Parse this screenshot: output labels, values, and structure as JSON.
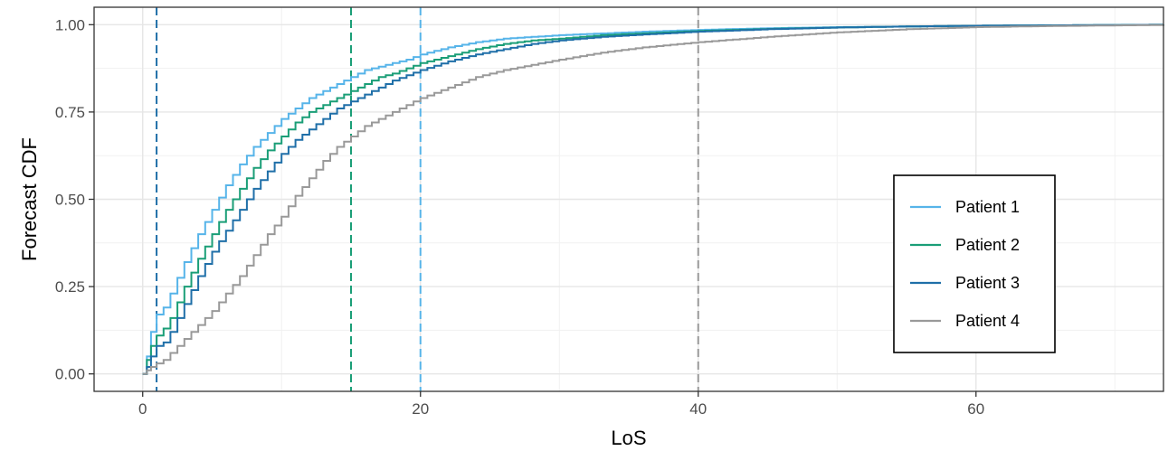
{
  "chart_data": {
    "type": "line",
    "title": "",
    "xlabel": "LoS",
    "ylabel": "Forecast CDF",
    "xlim": [
      -3.5,
      73.5
    ],
    "ylim": [
      -0.05,
      1.05
    ],
    "x_ticks": [
      0,
      20,
      40,
      60
    ],
    "x_tick_labels": [
      "0",
      "20",
      "40",
      "60"
    ],
    "y_ticks": [
      0,
      0.25,
      0.5,
      0.75,
      1.0
    ],
    "y_tick_labels": [
      "0.00",
      "0.25",
      "0.50",
      "0.75",
      "1.00"
    ],
    "grid": true,
    "legend_position": "right",
    "series": [
      {
        "name": "Patient 1",
        "color": "#56B4E9",
        "x": [
          0,
          0.3,
          0.6,
          1,
          1.5,
          2,
          3,
          4,
          5,
          6,
          7,
          8,
          9,
          10,
          11,
          12,
          13,
          14,
          15,
          16,
          17,
          18,
          19,
          20,
          22,
          24,
          26,
          28,
          30,
          33,
          36,
          40,
          45,
          50,
          55,
          60,
          65,
          70,
          73.5
        ],
        "y": [
          0,
          0.05,
          0.12,
          0.17,
          0.19,
          0.23,
          0.32,
          0.4,
          0.47,
          0.54,
          0.6,
          0.65,
          0.69,
          0.73,
          0.76,
          0.79,
          0.81,
          0.83,
          0.85,
          0.87,
          0.88,
          0.89,
          0.9,
          0.915,
          0.935,
          0.95,
          0.96,
          0.965,
          0.97,
          0.975,
          0.98,
          0.985,
          0.99,
          0.993,
          0.995,
          0.997,
          0.998,
          0.999,
          1.0
        ],
        "reference_line_x": 20
      },
      {
        "name": "Patient 2",
        "color": "#1A9E77",
        "x": [
          0,
          0.3,
          0.6,
          1,
          1.5,
          2,
          3,
          4,
          5,
          6,
          7,
          8,
          9,
          10,
          11,
          12,
          13,
          14,
          15,
          16,
          17,
          18,
          19,
          20,
          22,
          24,
          26,
          28,
          30,
          33,
          36,
          40,
          45,
          50,
          55,
          60,
          65,
          70,
          73.5
        ],
        "y": [
          0,
          0.04,
          0.08,
          0.11,
          0.13,
          0.16,
          0.25,
          0.33,
          0.4,
          0.47,
          0.53,
          0.59,
          0.64,
          0.68,
          0.72,
          0.75,
          0.77,
          0.79,
          0.81,
          0.83,
          0.85,
          0.86,
          0.875,
          0.89,
          0.91,
          0.93,
          0.945,
          0.955,
          0.96,
          0.97,
          0.975,
          0.982,
          0.988,
          0.992,
          0.995,
          0.997,
          0.998,
          0.999,
          1.0
        ],
        "reference_line_x": 15
      },
      {
        "name": "Patient 3",
        "color": "#1F6FA8",
        "x": [
          0,
          0.3,
          0.6,
          1,
          1.5,
          2,
          3,
          4,
          5,
          6,
          7,
          8,
          9,
          10,
          11,
          12,
          13,
          14,
          15,
          16,
          17,
          18,
          19,
          20,
          22,
          24,
          26,
          28,
          30,
          33,
          36,
          40,
          45,
          50,
          55,
          60,
          65,
          70,
          73.5
        ],
        "y": [
          0,
          0.02,
          0.05,
          0.08,
          0.09,
          0.12,
          0.2,
          0.28,
          0.35,
          0.41,
          0.47,
          0.53,
          0.58,
          0.63,
          0.67,
          0.7,
          0.73,
          0.76,
          0.78,
          0.8,
          0.82,
          0.84,
          0.855,
          0.87,
          0.895,
          0.915,
          0.93,
          0.945,
          0.955,
          0.965,
          0.972,
          0.98,
          0.987,
          0.992,
          0.995,
          0.997,
          0.998,
          0.999,
          1.0
        ],
        "reference_line_x": 1
      },
      {
        "name": "Patient 4",
        "color": "#999999",
        "x": [
          0,
          0.3,
          0.6,
          1,
          1.5,
          2,
          3,
          4,
          5,
          6,
          7,
          8,
          9,
          10,
          11,
          12,
          13,
          14,
          15,
          16,
          17,
          18,
          19,
          20,
          22,
          24,
          26,
          28,
          30,
          33,
          36,
          40,
          45,
          50,
          55,
          60,
          65,
          70,
          73.5
        ],
        "y": [
          0,
          0.01,
          0.02,
          0.03,
          0.04,
          0.06,
          0.1,
          0.14,
          0.18,
          0.23,
          0.28,
          0.34,
          0.4,
          0.45,
          0.51,
          0.56,
          0.61,
          0.65,
          0.68,
          0.71,
          0.73,
          0.75,
          0.77,
          0.79,
          0.82,
          0.85,
          0.87,
          0.885,
          0.9,
          0.92,
          0.935,
          0.95,
          0.965,
          0.978,
          0.987,
          0.993,
          0.996,
          0.998,
          0.999
        ],
        "reference_line_x": 40
      }
    ]
  }
}
